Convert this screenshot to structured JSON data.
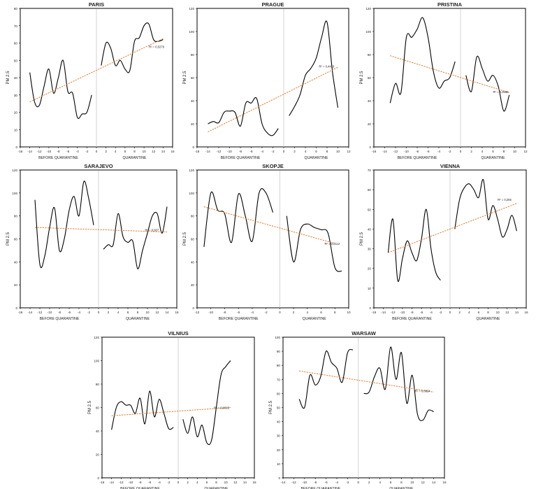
{
  "chart_data": [
    {
      "type": "line",
      "title": "PARIS",
      "xlabel_before": "BEFORE QUARANTINE",
      "xlabel_after": "QUARANTINE",
      "ylabel": "PM 2.5",
      "xlim": [
        -16,
        16
      ],
      "ylim": [
        0,
        80
      ],
      "xticks": [
        -16,
        -14,
        -12,
        -10,
        -8,
        -6,
        -4,
        -2,
        0,
        2,
        4,
        6,
        8,
        10,
        12,
        14,
        16
      ],
      "yticks": [
        0,
        10,
        20,
        30,
        40,
        50,
        60,
        70,
        80
      ],
      "trendline": {
        "x": [
          -14,
          14
        ],
        "y": [
          26,
          62.5
        ]
      },
      "r2_label": "R² = 0,5279",
      "r2_pos": [
        11,
        58
      ],
      "series": [
        {
          "x": [
            -14,
            -13,
            -12,
            -11,
            -10,
            -9,
            -8,
            -7,
            -6,
            -5,
            -4,
            -3,
            -2,
            -1
          ],
          "y": [
            43,
            26,
            24,
            35,
            45,
            31,
            40,
            50,
            32,
            31,
            17,
            19,
            20,
            30
          ]
        },
        {
          "x": [
            1,
            2,
            3,
            4,
            5,
            6,
            7,
            8,
            9,
            10,
            11,
            12,
            13,
            14
          ],
          "y": [
            47,
            60,
            57,
            47,
            50,
            45,
            44,
            61,
            63,
            70,
            71,
            62,
            61,
            62
          ]
        }
      ]
    },
    {
      "type": "line",
      "title": "PRAGUE",
      "xlabel_before": "BEFORE QUARANTINE",
      "xlabel_after": "QUARANTINE",
      "ylabel": "PM 2.5",
      "xlim": [
        -16,
        12
      ],
      "ylim": [
        0,
        120
      ],
      "xticks": [
        -16,
        -14,
        -12,
        -10,
        -8,
        -6,
        -4,
        -2,
        0,
        2,
        4,
        6,
        8,
        10,
        12
      ],
      "yticks": [
        0,
        20,
        40,
        60,
        80,
        100,
        120
      ],
      "trendline": {
        "x": [
          -14,
          10
        ],
        "y": [
          13,
          69
        ]
      },
      "r2_label": "R² = 0,4419",
      "r2_pos": [
        6.5,
        70
      ],
      "series": [
        {
          "x": [
            -14,
            -13,
            -12,
            -11,
            -10,
            -9,
            -8,
            -7,
            -6,
            -5,
            -4,
            -3,
            -2,
            -1
          ],
          "y": [
            20,
            22,
            21,
            30,
            31,
            30,
            18,
            38,
            38,
            42,
            20,
            12,
            10,
            16
          ]
        },
        {
          "x": [
            1,
            2,
            3,
            4,
            5,
            6,
            7,
            8,
            9,
            10
          ],
          "y": [
            27,
            35,
            45,
            62,
            68,
            77,
            95,
            108,
            65,
            34
          ]
        }
      ]
    },
    {
      "type": "line",
      "title": "PRISTINA",
      "xlabel_before": "BEFORE QUARANTINE",
      "xlabel_after": "QUARANTINE",
      "ylabel": "PM 2.5",
      "xlim": [
        -16,
        12
      ],
      "ylim": [
        0,
        120
      ],
      "xticks": [
        -16,
        -14,
        -12,
        -10,
        -8,
        -6,
        -4,
        -2,
        0,
        2,
        4,
        6,
        8,
        10,
        12
      ],
      "yticks": [
        0,
        20,
        40,
        60,
        80,
        100,
        120
      ],
      "trendline": {
        "x": [
          -13,
          9
        ],
        "y": [
          79,
          47
        ]
      },
      "r2_label": "R² = 0,3558",
      "r2_pos": [
        6,
        48
      ],
      "series": [
        {
          "x": [
            -13,
            -12,
            -11,
            -10,
            -9,
            -8,
            -7,
            -6,
            -5,
            -4,
            -3,
            -2,
            -1
          ],
          "y": [
            38,
            55,
            47,
            95,
            95,
            102,
            112,
            95,
            65,
            51,
            57,
            60,
            74
          ]
        },
        {
          "x": [
            1,
            2,
            3,
            4,
            5,
            6,
            7,
            8,
            9
          ],
          "y": [
            62,
            48,
            78,
            68,
            57,
            62,
            52,
            31,
            45
          ]
        }
      ]
    },
    {
      "type": "line",
      "title": "SARAJEVO",
      "xlabel_before": "BEFORE QUARANTINE",
      "xlabel_after": "QUARANTINE",
      "ylabel": "PM 2.5",
      "xlim": [
        -16,
        16
      ],
      "ylim": [
        0,
        120
      ],
      "xticks": [
        -16,
        -14,
        -12,
        -10,
        -8,
        -6,
        -4,
        -2,
        0,
        2,
        4,
        6,
        8,
        10,
        12,
        14,
        16
      ],
      "yticks": [
        0,
        20,
        40,
        60,
        80,
        100,
        120
      ],
      "trendline": {
        "x": [
          -13,
          14
        ],
        "y": [
          70,
          66
        ]
      },
      "r2_label": "R² = 0,007",
      "r2_pos": [
        9.5,
        68
      ],
      "series": [
        {
          "x": [
            -13,
            -12,
            -11,
            -10,
            -9,
            -8,
            -7,
            -6,
            -5,
            -4,
            -3,
            -2,
            -1
          ],
          "y": [
            94,
            38,
            45,
            70,
            87,
            50,
            60,
            85,
            97,
            80,
            110,
            95,
            72
          ]
        },
        {
          "x": [
            1,
            2,
            3,
            4,
            5,
            6,
            7,
            8,
            9,
            10,
            11,
            12,
            13,
            14
          ],
          "y": [
            51,
            55,
            55,
            82,
            62,
            57,
            58,
            34,
            50,
            65,
            80,
            82,
            65,
            88
          ]
        }
      ]
    },
    {
      "type": "line",
      "title": "SKOPJE",
      "xlabel_before": "BEFORE QUARANTINE",
      "xlabel_after": "QUARANTINE",
      "ylabel": "PM 2.5",
      "xlim": [
        -12,
        10
      ],
      "ylim": [
        0,
        120
      ],
      "xticks": [
        -12,
        -10,
        -8,
        -6,
        -4,
        -2,
        0,
        2,
        4,
        6,
        8,
        10
      ],
      "yticks": [
        0,
        20,
        40,
        60,
        80,
        100,
        120
      ],
      "trendline": {
        "x": [
          -11,
          8
        ],
        "y": [
          88,
          56
        ]
      },
      "r2_label": "R² = 0,2112",
      "r2_pos": [
        6.5,
        56
      ],
      "series": [
        {
          "x": [
            -11,
            -10,
            -9,
            -8,
            -7,
            -6,
            -5,
            -4,
            -3,
            -2,
            -1
          ],
          "y": [
            53,
            100,
            85,
            82,
            57,
            99,
            80,
            58,
            100,
            100,
            83
          ]
        },
        {
          "x": [
            1,
            2,
            3,
            4,
            5,
            6,
            7,
            8,
            9
          ],
          "y": [
            80,
            40,
            68,
            73,
            70,
            68,
            65,
            35,
            32
          ]
        }
      ]
    },
    {
      "type": "line",
      "title": "VIENNA",
      "xlabel_before": "BEFORE QUARANTINE",
      "xlabel_after": "QUARANTINE",
      "ylabel": "PM 2.5",
      "xlim": [
        -16,
        16
      ],
      "ylim": [
        0,
        70
      ],
      "xticks": [
        -16,
        -14,
        -12,
        -10,
        -8,
        -6,
        -4,
        -2,
        0,
        2,
        4,
        6,
        8,
        10,
        12,
        14,
        16
      ],
      "yticks": [
        0,
        10,
        20,
        30,
        40,
        50,
        60,
        70
      ],
      "trendline": {
        "x": [
          -13,
          14
        ],
        "y": [
          28,
          53
        ]
      },
      "r2_label": "R² = 0,255",
      "r2_pos": [
        10,
        55
      ],
      "series": [
        {
          "x": [
            -13,
            -12,
            -11,
            -10,
            -9,
            -8,
            -7,
            -6,
            -5,
            -4,
            -3,
            -2
          ],
          "y": [
            28,
            45,
            14,
            25,
            34,
            28,
            24,
            35,
            50,
            30,
            18,
            14
          ]
        },
        {
          "x": [
            1,
            2,
            3,
            4,
            5,
            6,
            7,
            8,
            9,
            10,
            11,
            12,
            13,
            14
          ],
          "y": [
            40,
            55,
            61,
            63,
            60,
            56,
            65,
            45,
            52,
            45,
            36,
            40,
            47,
            39
          ]
        }
      ]
    },
    {
      "type": "line",
      "title": "VILNIUS",
      "xlabel_before": "BEFORE QUARANTINE",
      "xlabel_after": "QUARANTINE",
      "ylabel": "PM 2.5",
      "xlim": [
        -16,
        16
      ],
      "ylim": [
        0,
        120
      ],
      "xticks": [
        -16,
        -14,
        -12,
        -10,
        -8,
        -6,
        -4,
        -2,
        0,
        2,
        4,
        6,
        8,
        10,
        12,
        14,
        16
      ],
      "yticks": [
        0,
        20,
        40,
        60,
        80,
        100,
        120
      ],
      "trendline": {
        "x": [
          -14,
          11
        ],
        "y": [
          53,
          60
        ]
      },
      "r2_label": "R² = 0,0013",
      "r2_pos": [
        7.5,
        60
      ],
      "series": [
        {
          "x": [
            -14,
            -13,
            -12,
            -11,
            -10,
            -9,
            -8,
            -7,
            -6,
            -5,
            -4,
            -3,
            -2,
            -1
          ],
          "y": [
            41,
            60,
            65,
            62,
            62,
            55,
            68,
            46,
            74,
            52,
            67,
            55,
            42,
            43
          ]
        },
        {
          "x": [
            1,
            2,
            3,
            4,
            5,
            6,
            7,
            8,
            9,
            10,
            11
          ],
          "y": [
            50,
            38,
            52,
            35,
            45,
            30,
            32,
            60,
            88,
            95,
            100
          ]
        }
      ]
    },
    {
      "type": "line",
      "title": "WARSAW",
      "xlabel_before": "BEFORE QUARANTINE",
      "xlabel_after": "QUARANTINE",
      "ylabel": "PM 2.5",
      "xlim": [
        -14,
        16
      ],
      "ylim": [
        0,
        100
      ],
      "xticks": [
        -14,
        -12,
        -10,
        -8,
        -6,
        -4,
        -2,
        0,
        2,
        4,
        6,
        8,
        10,
        12,
        14,
        16
      ],
      "yticks": [
        0,
        10,
        20,
        30,
        40,
        50,
        60,
        70,
        80,
        90,
        100
      ],
      "trendline": {
        "x": [
          -11,
          14
        ],
        "y": [
          76,
          61
        ]
      },
      "r2_label": "R² = 0,0824",
      "r2_pos": [
        10.5,
        62
      ],
      "series": [
        {
          "x": [
            -11,
            -10,
            -9,
            -8,
            -7,
            -6,
            -5,
            -4,
            -3,
            -2,
            -1
          ],
          "y": [
            56,
            50,
            73,
            66,
            72,
            90,
            82,
            78,
            68,
            89,
            91
          ]
        },
        {
          "x": [
            1,
            2,
            3,
            4,
            5,
            6,
            7,
            8,
            9,
            10,
            11,
            12,
            13,
            14
          ],
          "y": [
            60,
            61,
            72,
            78,
            63,
            93,
            70,
            89,
            53,
            73,
            45,
            41,
            48,
            47
          ]
        }
      ]
    }
  ]
}
